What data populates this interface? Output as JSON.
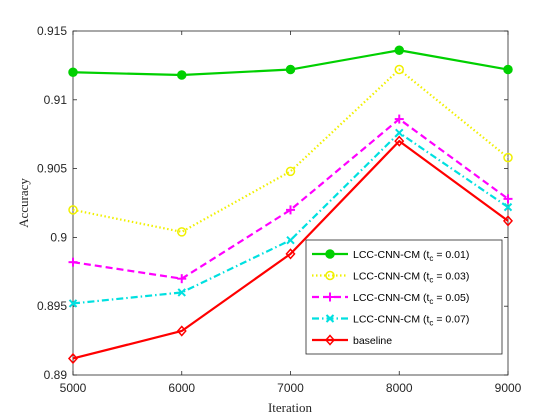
{
  "chart_data": {
    "type": "line",
    "xlabel": "Iteration",
    "ylabel": "Accuracy",
    "xlim": [
      5000,
      9000
    ],
    "ylim": [
      0.89,
      0.915
    ],
    "x": [
      5000,
      6000,
      7000,
      8000,
      9000
    ],
    "xticks": [
      "5000",
      "6000",
      "7000",
      "8000",
      "9000"
    ],
    "yticks": [
      {
        "value": 0.89,
        "label": "0.89"
      },
      {
        "value": 0.895,
        "label": "0.895"
      },
      {
        "value": 0.9,
        "label": "0.9"
      },
      {
        "value": 0.905,
        "label": "0.905"
      },
      {
        "value": 0.91,
        "label": "0.91"
      },
      {
        "value": 0.915,
        "label": "0.915"
      }
    ],
    "grid": false,
    "legend_position": "bottom-right",
    "series": [
      {
        "name": "LCC-CNN-CM (t_c = 0.01)",
        "legend_main": "LCC-CNN-CM (t",
        "legend_sub": "c",
        "legend_tail": " = 0.01)",
        "values": [
          0.912,
          0.9118,
          0.9122,
          0.9136,
          0.9122
        ],
        "color": "#00d000",
        "dash": "solid",
        "marker": "filled-circle"
      },
      {
        "name": "LCC-CNN-CM (t_c = 0.03)",
        "legend_main": "LCC-CNN-CM (t",
        "legend_sub": "c",
        "legend_tail": " = 0.03)",
        "values": [
          0.902,
          0.9004,
          0.9048,
          0.9122,
          0.9058
        ],
        "color": "#f0f000",
        "dash": "dotted",
        "marker": "open-circle"
      },
      {
        "name": "LCC-CNN-CM (t_c = 0.05)",
        "legend_main": "LCC-CNN-CM (t",
        "legend_sub": "c",
        "legend_tail": " = 0.05)",
        "values": [
          0.8982,
          0.897,
          0.902,
          0.9086,
          0.9028
        ],
        "color": "#ff00ff",
        "dash": "dashed",
        "marker": "plus"
      },
      {
        "name": "LCC-CNN-CM (t_c = 0.07)",
        "legend_main": "LCC-CNN-CM (t",
        "legend_sub": "c",
        "legend_tail": " = 0.07)",
        "values": [
          0.8952,
          0.896,
          0.8998,
          0.9076,
          0.9022
        ],
        "color": "#00e0e0",
        "dash": "dashdot",
        "marker": "x"
      },
      {
        "name": "baseline",
        "legend_main": "baseline",
        "legend_sub": "",
        "legend_tail": "",
        "values": [
          0.8912,
          0.8932,
          0.8988,
          0.907,
          0.9012
        ],
        "color": "#ff0000",
        "dash": "solid",
        "marker": "diamond"
      }
    ]
  }
}
